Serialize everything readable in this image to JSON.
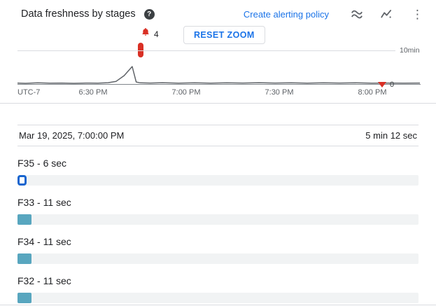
{
  "colors": {
    "accent_blue": "#1a73e8",
    "alert_red": "#d93025",
    "bar_teal": "#58a6bf",
    "track_gray": "#f1f3f4"
  },
  "header": {
    "title": "Data freshness by stages",
    "help_label": "?",
    "link_label": "Create alerting policy",
    "more_menu_glyph": "⋮"
  },
  "chart": {
    "alert_count": "4",
    "reset_zoom_label": "RESET ZOOM",
    "threshold_label": "10min",
    "end_marker_value": "0",
    "x_ticks": [
      "UTC-7",
      "6:30 PM",
      "7:00 PM",
      "7:30 PM",
      "8:00 PM"
    ]
  },
  "tooltip": {
    "timestamp": "Mar 19, 2025, 7:00:00 PM",
    "duration": "5 min 12 sec",
    "total_seconds": 312,
    "stages": [
      {
        "label": "F35 - 6 sec",
        "seconds": 6,
        "selected": true
      },
      {
        "label": "F33 - 11 sec",
        "seconds": 11,
        "selected": false
      },
      {
        "label": "F34 - 11 sec",
        "seconds": 11,
        "selected": false
      },
      {
        "label": "F32 - 11 sec",
        "seconds": 11,
        "selected": false
      }
    ]
  },
  "chart_data": {
    "type": "line",
    "title": "Data freshness by stages",
    "x_axis": {
      "timezone": "UTC-7",
      "ticks": [
        "6:30 PM",
        "7:00 PM",
        "7:30 PM",
        "8:00 PM"
      ]
    },
    "y_axis": {
      "gridline_label": "10min",
      "unit": "minutes",
      "range_minutes": [
        0,
        12.5
      ]
    },
    "annotations": {
      "alert_count": 4,
      "peak_minutes": 5.2,
      "end_value": 0,
      "alert_marker_time_fraction": 0.3
    },
    "points": [
      [
        0.0,
        0.3
      ],
      [
        0.02,
        0.2
      ],
      [
        0.05,
        0.35
      ],
      [
        0.08,
        0.25
      ],
      [
        0.11,
        0.3
      ],
      [
        0.14,
        0.2
      ],
      [
        0.17,
        0.3
      ],
      [
        0.2,
        0.25
      ],
      [
        0.225,
        0.4
      ],
      [
        0.245,
        0.8
      ],
      [
        0.265,
        2.5
      ],
      [
        0.285,
        5.2
      ],
      [
        0.295,
        0.6
      ],
      [
        0.305,
        0.35
      ],
      [
        0.33,
        0.3
      ],
      [
        0.36,
        0.4
      ],
      [
        0.4,
        0.25
      ],
      [
        0.44,
        0.35
      ],
      [
        0.48,
        0.25
      ],
      [
        0.52,
        0.35
      ],
      [
        0.56,
        0.3
      ],
      [
        0.6,
        0.4
      ],
      [
        0.64,
        0.3
      ],
      [
        0.68,
        0.35
      ],
      [
        0.72,
        0.25
      ],
      [
        0.76,
        0.35
      ],
      [
        0.8,
        0.3
      ],
      [
        0.84,
        0.35
      ],
      [
        0.88,
        0.25
      ],
      [
        0.92,
        0.3
      ],
      [
        0.96,
        0.25
      ],
      [
        1.0,
        0.3
      ]
    ]
  }
}
